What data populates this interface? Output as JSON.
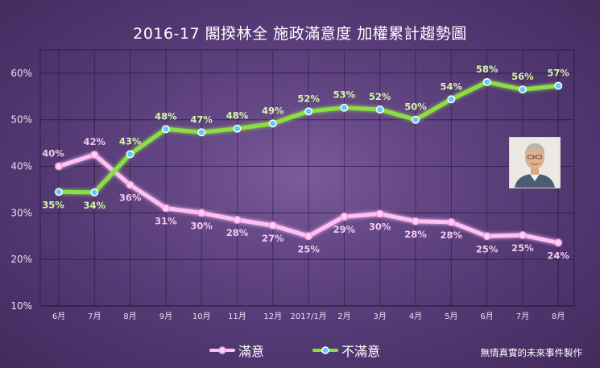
{
  "chart_data": {
    "type": "line",
    "title": "2016-17 閣揆林全 施政滿意度 加權累計趨勢圖",
    "xlabel": "",
    "ylabel": "",
    "categories": [
      "6月",
      "7月",
      "8月",
      "9月",
      "10月",
      "11月",
      "12月",
      "2017/1月",
      "2月",
      "3月",
      "4月",
      "5月",
      "6月",
      "7月",
      "8月"
    ],
    "y_ticks": [
      "10%",
      "20%",
      "30%",
      "40%",
      "50%",
      "60%"
    ],
    "ylim": [
      10,
      65
    ],
    "grid": true,
    "legend_position": "bottom",
    "series": [
      {
        "name": "滿意",
        "color": "#ffc0f4",
        "values": [
          40,
          42.5,
          36,
          31,
          30,
          28.5,
          27.3,
          25,
          29.2,
          29.8,
          28.2,
          28,
          25,
          25.2,
          23.6
        ],
        "labels": [
          "40%",
          "42%",
          "36%",
          "31%",
          "30%",
          "28%",
          "27%",
          "25%",
          "29%",
          "30%",
          "28%",
          "28%",
          "25%",
          "25%",
          "24%"
        ]
      },
      {
        "name": "不滿意",
        "color": "#8dde45",
        "values": [
          34.5,
          34.4,
          42.6,
          48,
          47.3,
          48.1,
          49.2,
          51.8,
          52.6,
          52.2,
          50,
          54.4,
          58.1,
          56.5,
          57.3
        ],
        "labels": [
          "35%",
          "34%",
          "43%",
          "48%",
          "47%",
          "48%",
          "49%",
          "52%",
          "53%",
          "52%",
          "50%",
          "54%",
          "58%",
          "56%",
          "57%"
        ]
      }
    ]
  },
  "credit": "無情真實的未來事件製作"
}
